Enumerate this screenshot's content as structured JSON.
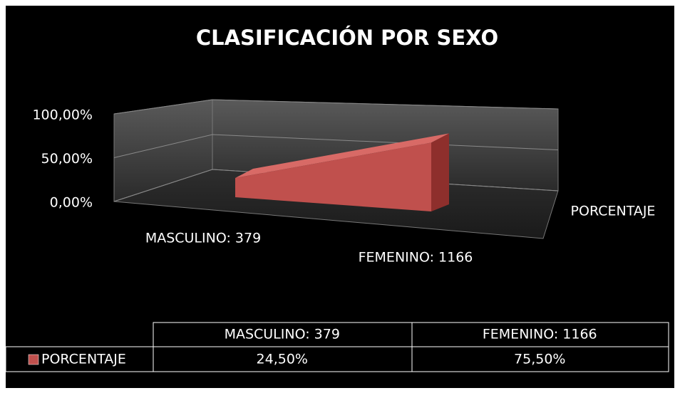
{
  "chart_data": {
    "type": "area3d",
    "title": "CLASIFICACIÓN POR SEXO",
    "categories": [
      "MASCULINO: 379",
      "FEMENINO: 1166"
    ],
    "series": [
      {
        "name": "PORCENTAJE",
        "color": "#c0504d",
        "values": [
          24.5,
          75.5
        ],
        "value_labels": [
          "24,50%",
          "75,50%"
        ]
      }
    ],
    "ylim": [
      0,
      100
    ],
    "yticks": [
      {
        "value": 0,
        "label": "0,00%"
      },
      {
        "value": 50,
        "label": "50,00%"
      },
      {
        "value": 100,
        "label": "100,00%"
      }
    ],
    "grid": true
  }
}
